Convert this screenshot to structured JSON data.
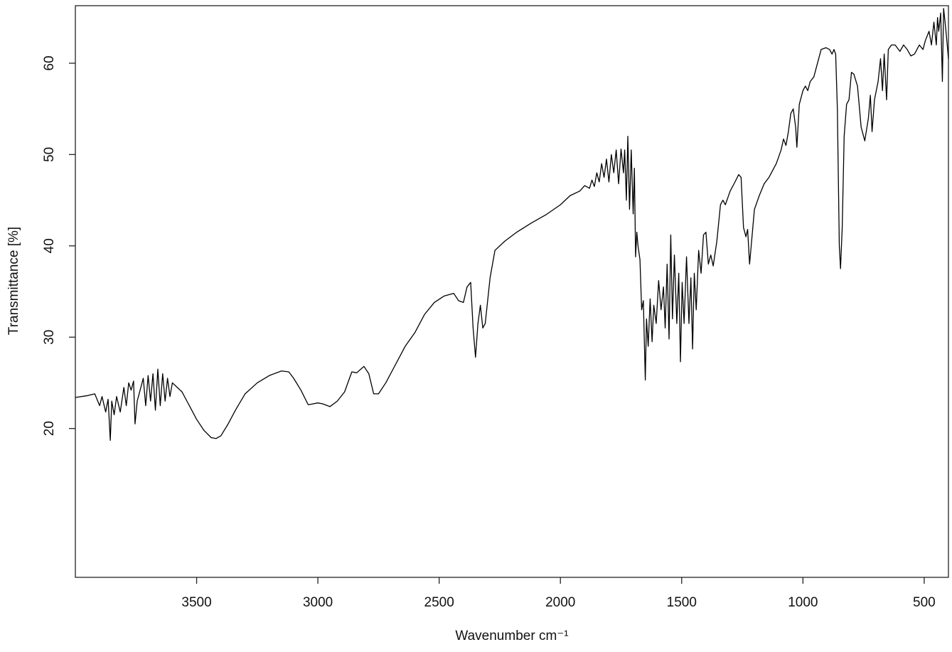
{
  "chart_data": {
    "type": "line",
    "xlabel": "Wavenumber cm⁻¹",
    "ylabel": "Transmittance [%]",
    "xlim": [
      4000,
      400
    ],
    "ylim": [
      3.7,
      66.3
    ],
    "xticks": [
      3500,
      3000,
      2500,
      2000,
      1500,
      1000,
      500
    ],
    "yticks": [
      20,
      30,
      40,
      50,
      60
    ],
    "color": "#000000",
    "x": [
      4000,
      3950,
      3920,
      3900,
      3890,
      3875,
      3865,
      3856,
      3850,
      3840,
      3830,
      3815,
      3800,
      3790,
      3780,
      3770,
      3760,
      3754,
      3745,
      3735,
      3720,
      3710,
      3700,
      3690,
      3680,
      3670,
      3660,
      3650,
      3640,
      3630,
      3620,
      3610,
      3600,
      3580,
      3560,
      3540,
      3520,
      3500,
      3470,
      3440,
      3420,
      3400,
      3370,
      3340,
      3300,
      3250,
      3200,
      3150,
      3120,
      3100,
      3070,
      3040,
      3020,
      3000,
      2980,
      2950,
      2920,
      2890,
      2860,
      2840,
      2810,
      2790,
      2770,
      2750,
      2720,
      2680,
      2640,
      2600,
      2560,
      2520,
      2480,
      2440,
      2420,
      2400,
      2385,
      2370,
      2360,
      2350,
      2340,
      2330,
      2320,
      2310,
      2290,
      2270,
      2230,
      2180,
      2120,
      2060,
      2000,
      1960,
      1920,
      1900,
      1880,
      1870,
      1860,
      1850,
      1840,
      1830,
      1820,
      1810,
      1800,
      1790,
      1780,
      1770,
      1760,
      1750,
      1740,
      1735,
      1728,
      1722,
      1715,
      1708,
      1700,
      1695,
      1690,
      1685,
      1680,
      1672,
      1665,
      1658,
      1650,
      1645,
      1638,
      1630,
      1622,
      1615,
      1605,
      1595,
      1585,
      1575,
      1568,
      1560,
      1552,
      1545,
      1538,
      1530,
      1520,
      1512,
      1505,
      1498,
      1490,
      1480,
      1470,
      1462,
      1455,
      1448,
      1440,
      1430,
      1420,
      1410,
      1400,
      1390,
      1380,
      1370,
      1355,
      1340,
      1330,
      1320,
      1300,
      1280,
      1265,
      1255,
      1245,
      1235,
      1228,
      1220,
      1210,
      1200,
      1180,
      1160,
      1140,
      1120,
      1110,
      1090,
      1080,
      1070,
      1060,
      1050,
      1040,
      1030,
      1025,
      1015,
      1000,
      990,
      980,
      970,
      955,
      940,
      925,
      905,
      890,
      880,
      872,
      865,
      858,
      850,
      845,
      838,
      830,
      820,
      810,
      800,
      790,
      775,
      760,
      745,
      730,
      722,
      715,
      705,
      690,
      680,
      672,
      665,
      655,
      648,
      635,
      620,
      600,
      585,
      570,
      555,
      540,
      520,
      505,
      495,
      480,
      470,
      460,
      450,
      445,
      440,
      432,
      425,
      420,
      412,
      405,
      400
    ],
    "values": [
      23.4,
      23.6,
      23.8,
      22.5,
      23.5,
      21.8,
      23.2,
      18.7,
      23.0,
      21.5,
      23.5,
      21.8,
      24.5,
      22.5,
      25.0,
      24.2,
      25.2,
      20.5,
      23.0,
      24.0,
      25.5,
      22.5,
      25.8,
      23.0,
      26.0,
      22.0,
      26.5,
      22.5,
      26.0,
      23.0,
      25.5,
      23.5,
      25.0,
      24.5,
      24.0,
      23.0,
      22.0,
      21.0,
      19.8,
      19.0,
      18.9,
      19.2,
      20.5,
      22.0,
      23.8,
      25.0,
      25.8,
      26.3,
      26.2,
      25.5,
      24.2,
      22.6,
      22.7,
      22.8,
      22.7,
      22.4,
      23.0,
      24.0,
      26.2,
      26.1,
      26.8,
      26.0,
      23.8,
      23.8,
      25.0,
      27.0,
      29.0,
      30.5,
      32.5,
      33.8,
      34.5,
      34.8,
      34.0,
      33.8,
      35.5,
      36.0,
      31.0,
      27.8,
      31.5,
      33.5,
      31.0,
      31.5,
      36.5,
      39.5,
      40.5,
      41.5,
      42.5,
      43.4,
      44.5,
      45.5,
      46.0,
      46.6,
      46.3,
      47.2,
      46.5,
      48.0,
      47.0,
      49.0,
      47.5,
      49.5,
      47.0,
      50.0,
      48.0,
      50.5,
      46.8,
      50.6,
      48.0,
      50.5,
      45.0,
      52.0,
      44.0,
      50.5,
      43.5,
      48.5,
      38.8,
      41.5,
      40.0,
      38.5,
      33.0,
      34.0,
      25.3,
      32.0,
      29.0,
      34.2,
      29.5,
      33.5,
      31.5,
      36.2,
      33.0,
      35.5,
      31.0,
      38.0,
      29.8,
      41.2,
      32.0,
      39.0,
      31.5,
      37.0,
      27.3,
      36.0,
      31.5,
      38.8,
      31.5,
      36.5,
      28.7,
      37.0,
      33.0,
      39.5,
      37.0,
      41.2,
      41.5,
      38.0,
      39.0,
      37.8,
      40.5,
      44.5,
      45.0,
      44.5,
      46.0,
      47.0,
      47.8,
      47.5,
      42.0,
      41.0,
      41.8,
      38.0,
      41.0,
      44.0,
      45.5,
      46.8,
      47.5,
      48.5,
      49.0,
      50.5,
      51.7,
      51.0,
      52.5,
      54.5,
      55.0,
      53.0,
      50.8,
      55.5,
      57.0,
      57.5,
      57.0,
      58.0,
      58.5,
      60.0,
      61.5,
      61.7,
      61.5,
      61.0,
      61.5,
      61.0,
      55.0,
      40.0,
      37.5,
      42.0,
      52.0,
      55.5,
      56.0,
      59.0,
      58.8,
      57.5,
      53.0,
      51.5,
      54.0,
      56.5,
      52.5,
      56.0,
      58.0,
      60.5,
      57.0,
      61.0,
      56.0,
      61.5,
      62.0,
      62.0,
      61.3,
      62.0,
      61.5,
      60.8,
      61.0,
      62.0,
      61.5,
      62.5,
      63.5,
      62.0,
      64.5,
      62.0,
      65.0,
      63.5,
      65.5,
      58.0,
      66.0,
      64.0,
      62.0,
      60.5
    ]
  }
}
